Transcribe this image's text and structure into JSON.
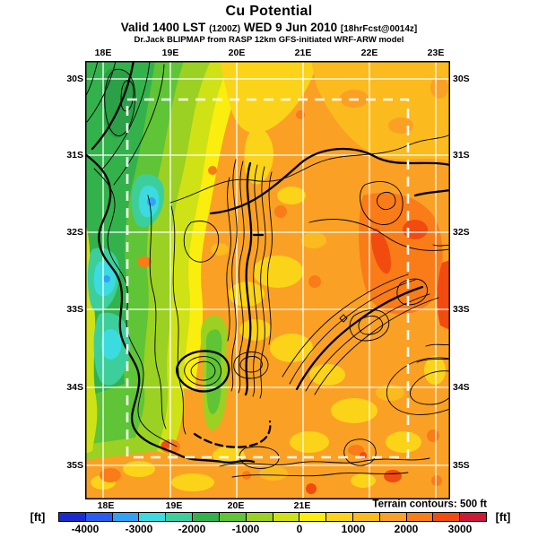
{
  "header": {
    "title": "Cu Potential",
    "valid_line": {
      "prefix": "Valid 1400 LST",
      "zulu": "(1200Z)",
      "date": "WED 9 Jun 2010",
      "forecast": "[18hrFcst@0014z]"
    },
    "model_line": "Dr.Jack BLIPMAP from RASP 12km GFS-initiated WRF-ARW model"
  },
  "map": {
    "lon_labels_top": [
      "18E",
      "19E",
      "20E",
      "21E",
      "22E",
      "23E"
    ],
    "lon_labels_bottom": [
      "18E",
      "19E",
      "20E",
      "21E"
    ],
    "lat_labels_left": [
      "30S",
      "31S",
      "32S",
      "33S",
      "34S",
      "35S"
    ],
    "lat_labels_right": [
      "30S",
      "31S",
      "32S",
      "33S",
      "34S",
      "35S"
    ],
    "terrain_note": "Terrain contours: 500 ft"
  },
  "colorbar": {
    "unit_left": "[ft]",
    "unit_right": "[ft]",
    "tick_labels": [
      "-4000",
      "-3000",
      "-2000",
      "-1000",
      "0",
      "1000",
      "2000",
      "3000"
    ],
    "colors": [
      "#1C2BD1",
      "#2A5CEF",
      "#33A1F5",
      "#3BDBDF",
      "#3CCF9B",
      "#33B24C",
      "#5FC436",
      "#9AD122",
      "#CFE215",
      "#F9EE0E",
      "#FBD318",
      "#FBBA1E",
      "#FAA125",
      "#F97C18",
      "#F24B10",
      "#CC1A38"
    ]
  },
  "chart_data": {
    "type": "heatmap",
    "title": "Cu Potential",
    "units": "ft",
    "colorbar_ticks": [
      -4000,
      -3000,
      -2000,
      -1000,
      0,
      1000,
      2000,
      3000
    ],
    "colorbar_range": [
      -4500,
      3500
    ],
    "terrain_contour_interval_ft": 500,
    "lon_ticks_deg_e": [
      18,
      19,
      20,
      21,
      22,
      23
    ],
    "lat_ticks_deg_s": [
      30,
      31,
      32,
      33,
      34,
      35
    ]
  }
}
